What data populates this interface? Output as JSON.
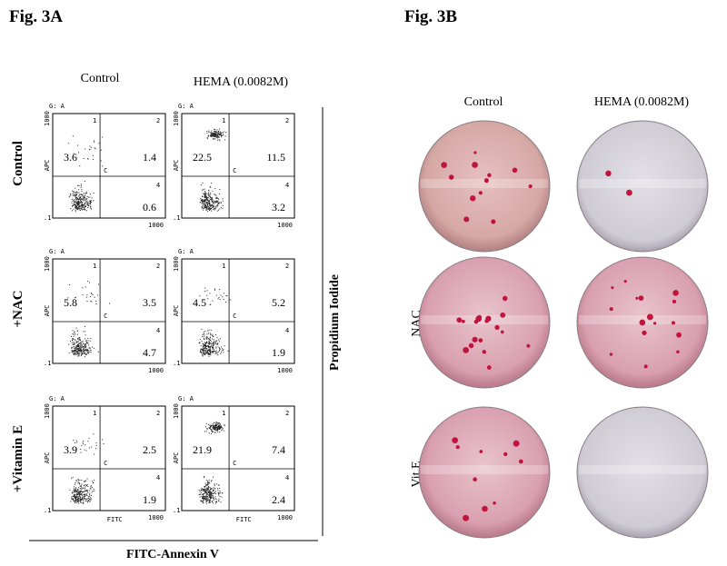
{
  "fig_a": {
    "title": "Fig. 3A",
    "columns": [
      "Control",
      "HEMA (0.0082M)"
    ],
    "rows": [
      "Control",
      "+NAC",
      "+Vitamin E"
    ],
    "y_axis_title": "Propidium Iodide",
    "x_axis_title": "FITC-Annexin V",
    "gate": "G: A",
    "panel_y_label": "APC",
    "panel_x_label": "FITC",
    "quadrant_labels": [
      "1",
      "2",
      "4",
      "C"
    ],
    "tick_low": ".1",
    "tick_high": "1000",
    "panels": [
      [
        {
          "left": "3.6",
          "upper_right": "1.4",
          "lower_right": "0.6"
        },
        {
          "left": "22.5",
          "upper_right": "11.5",
          "lower_right": "3.2"
        }
      ],
      [
        {
          "left": "5.8",
          "upper_right": "3.5",
          "lower_right": "4.7"
        },
        {
          "left": "4.5",
          "upper_right": "5.2",
          "lower_right": "1.9"
        }
      ],
      [
        {
          "left": "3.9",
          "upper_right": "2.5",
          "lower_right": "1.9"
        },
        {
          "left": "21.9",
          "upper_right": "7.4",
          "lower_right": "2.4"
        }
      ]
    ]
  },
  "fig_b": {
    "title": "Fig. 3B",
    "columns": [
      "Control",
      "HEMA (0.0082M)"
    ],
    "rows": [
      "NAC",
      "Vit E"
    ]
  }
}
